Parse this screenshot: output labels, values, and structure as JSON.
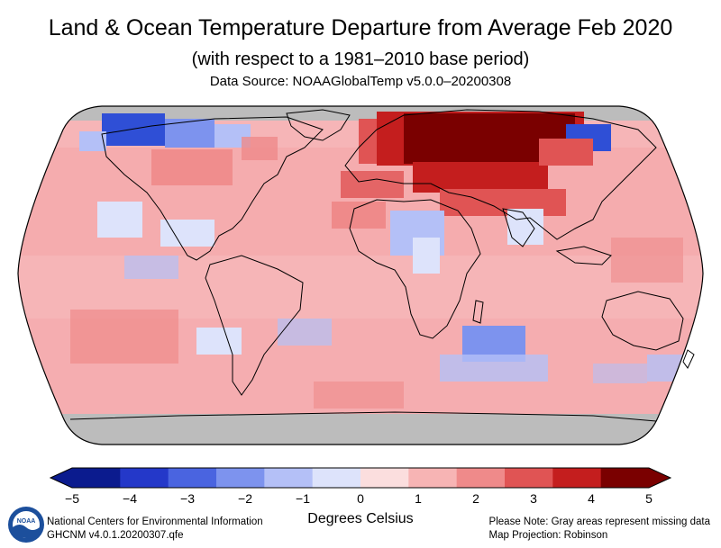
{
  "title": "Land & Ocean Temperature Departure from Average Feb 2020",
  "subtitle": "(with respect to a 1981–2010 base period)",
  "source": "Data Source: NOAAGlobalTemp v5.0.0–20200308",
  "colorbar": {
    "ticks": [
      "−5",
      "−4",
      "−3",
      "−2",
      "−1",
      "0",
      "1",
      "2",
      "3",
      "4",
      "5"
    ],
    "colors": [
      "#0b1b8e",
      "#2438c9",
      "#4a64e0",
      "#7d93ee",
      "#b4c0f7",
      "#dde3fb",
      "#fbdede",
      "#f7b4b4",
      "#ef8a8a",
      "#e05454",
      "#c41e1e",
      "#7a0000"
    ],
    "units": "Degrees Celsius"
  },
  "map": {
    "projection": "Robinson",
    "missing_color": "#bcbcbc",
    "ocean_base_color": "#f6b5b7",
    "regions": [
      {
        "name": "Arctic north Eurasia / Siberia",
        "anomaly": 5.0
      },
      {
        "name": "Central Asia",
        "anomaly": 3.5
      },
      {
        "name": "Eastern Europe",
        "anomaly": 3.0
      },
      {
        "name": "North Africa (Sahara)",
        "anomaly": -0.5
      },
      {
        "name": "Canadian Arctic / Greenland",
        "anomaly": -2.5
      },
      {
        "name": "Southern Indian Ocean",
        "anomaly": -1.0
      },
      {
        "name": "Eastern Pacific",
        "anomaly": -0.5
      },
      {
        "name": "Antarctica",
        "anomaly": null
      }
    ]
  },
  "footer": {
    "left_line1": "National Centers for Environmental Information",
    "left_line2": "GHCNM v4.0.1.20200307.qfe",
    "right_line1": "Please Note: Gray areas represent missing data",
    "right_line2": "Map Projection: Robinson",
    "logo_text": "NOAA"
  }
}
